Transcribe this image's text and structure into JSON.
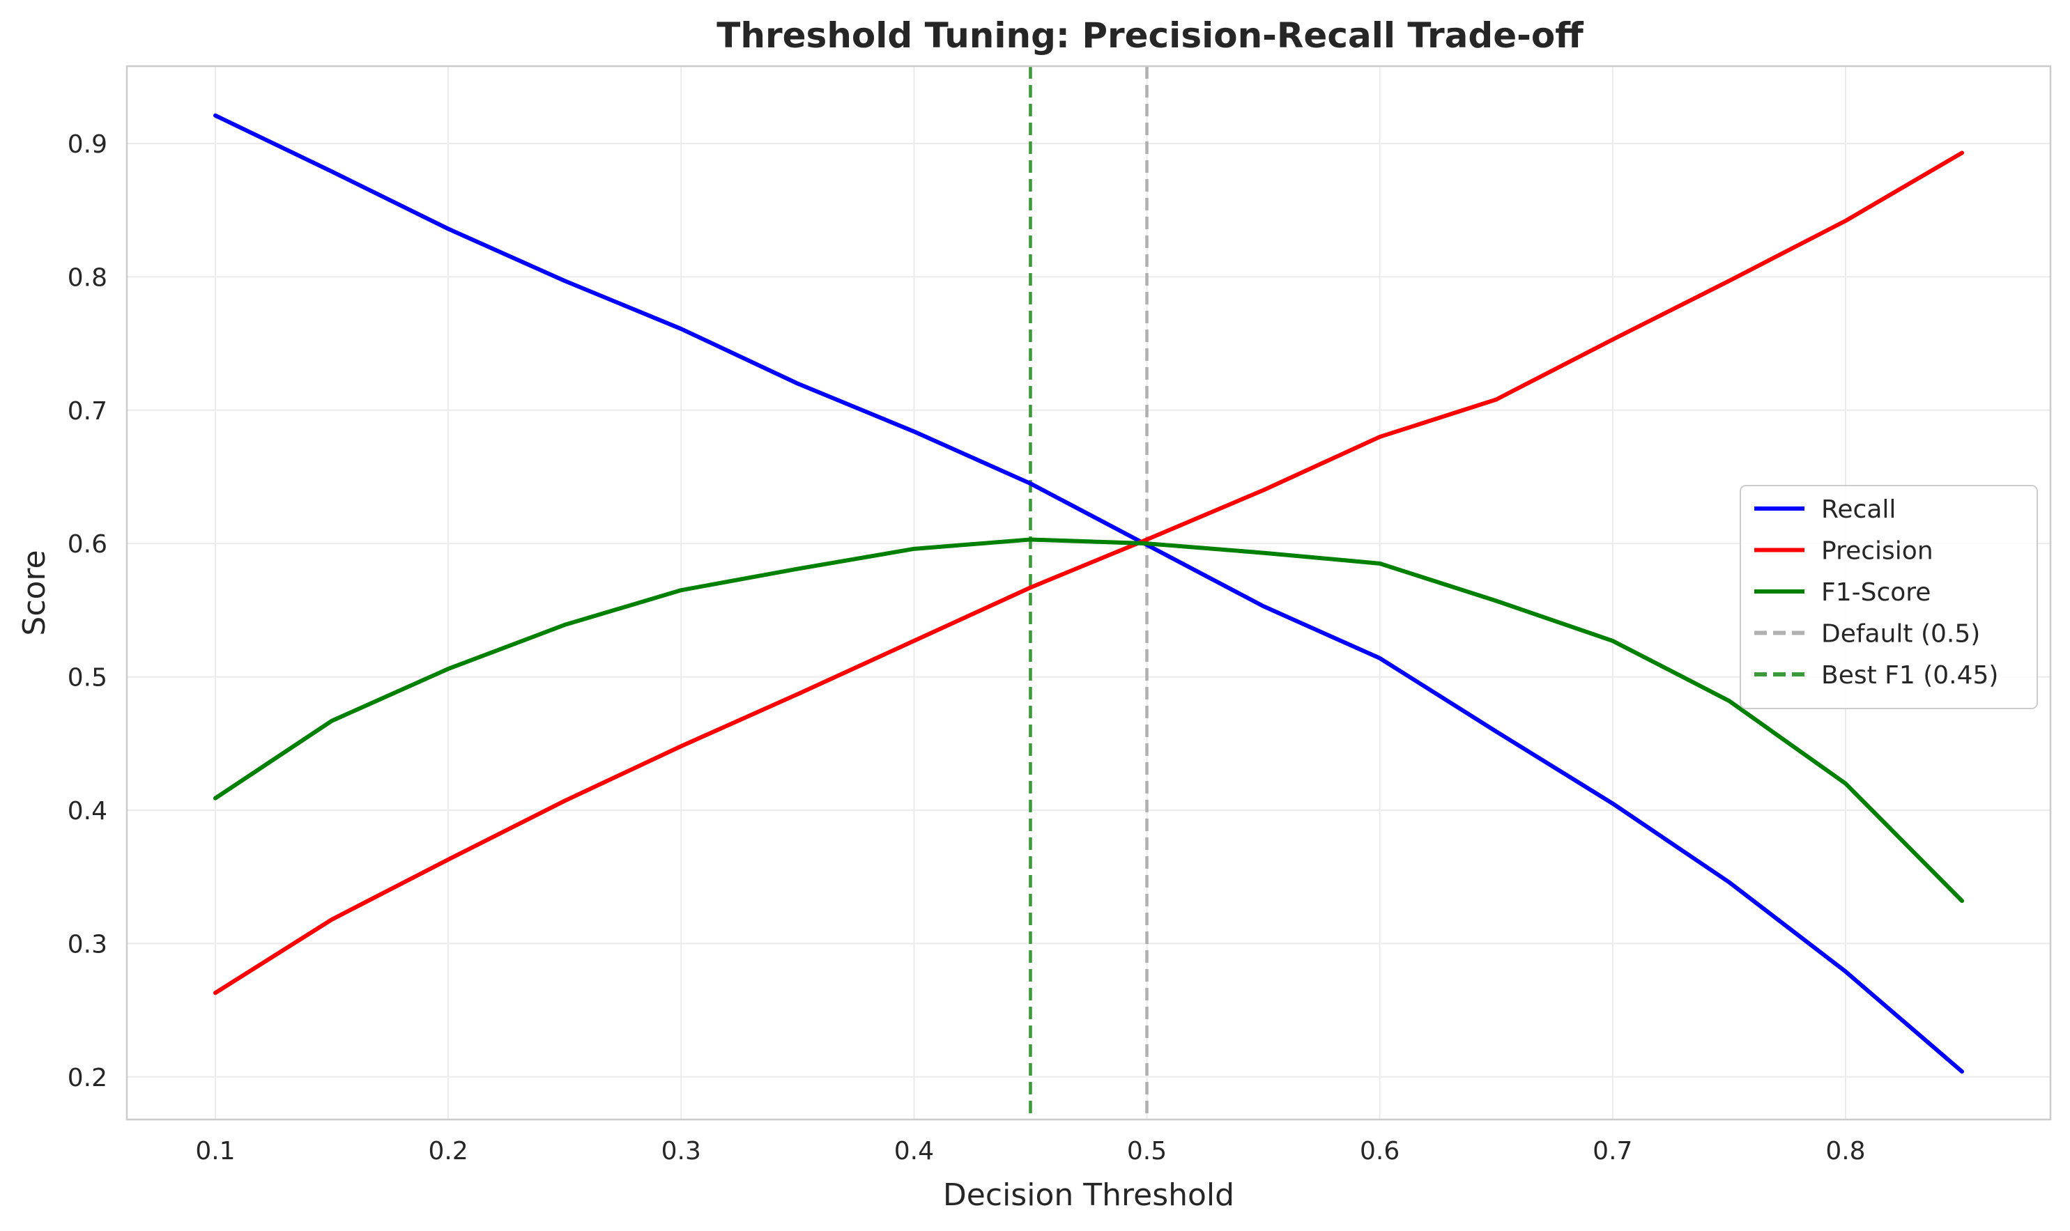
{
  "chart_data": {
    "type": "line",
    "title": "Threshold Tuning: Precision-Recall Trade-off",
    "xlabel": "Decision Threshold",
    "ylabel": "Score",
    "xlim": [
      0.062,
      0.888
    ],
    "ylim": [
      0.168,
      0.958
    ],
    "xticks": [
      0.1,
      0.2,
      0.3,
      0.4,
      0.5,
      0.6,
      0.7,
      0.8
    ],
    "xtick_labels": [
      "0.1",
      "0.2",
      "0.3",
      "0.4",
      "0.5",
      "0.6",
      "0.7",
      "0.8"
    ],
    "yticks": [
      0.2,
      0.3,
      0.4,
      0.5,
      0.6,
      0.7,
      0.8,
      0.9
    ],
    "ytick_labels": [
      "0.2",
      "0.3",
      "0.4",
      "0.5",
      "0.6",
      "0.7",
      "0.8",
      "0.9"
    ],
    "grid": true,
    "legend_position": "center-right",
    "x": [
      0.1,
      0.15,
      0.2,
      0.25,
      0.3,
      0.35,
      0.4,
      0.45,
      0.5,
      0.55,
      0.6,
      0.65,
      0.7,
      0.75,
      0.8,
      0.85
    ],
    "series": [
      {
        "name": "Recall",
        "color": "#0000ff",
        "style": "solid",
        "values": [
          0.921,
          0.879,
          0.836,
          0.797,
          0.761,
          0.72,
          0.684,
          0.645,
          0.599,
          0.553,
          0.514,
          0.459,
          0.405,
          0.346,
          0.279,
          0.204
        ]
      },
      {
        "name": "Precision",
        "color": "#ff0000",
        "style": "solid",
        "values": [
          0.263,
          0.318,
          0.363,
          0.407,
          0.448,
          0.487,
          0.527,
          0.567,
          0.603,
          0.64,
          0.68,
          0.708,
          0.753,
          0.797,
          0.842,
          0.893
        ]
      },
      {
        "name": "F1-Score",
        "color": "#008000",
        "style": "solid",
        "values": [
          0.409,
          0.467,
          0.506,
          0.539,
          0.565,
          0.581,
          0.596,
          0.603,
          0.6,
          0.593,
          0.585,
          0.557,
          0.527,
          0.482,
          0.42,
          0.332
        ]
      }
    ],
    "vlines": [
      {
        "name": "Default (0.5)",
        "x": 0.5,
        "color": "#b0b0b0",
        "style": "dashed"
      },
      {
        "name": "Best F1 (0.45)",
        "x": 0.45,
        "color": "#3a9a3a",
        "style": "dashed"
      }
    ],
    "legend": [
      "Recall",
      "Precision",
      "F1-Score",
      "Default (0.5)",
      "Best F1 (0.45)"
    ]
  }
}
